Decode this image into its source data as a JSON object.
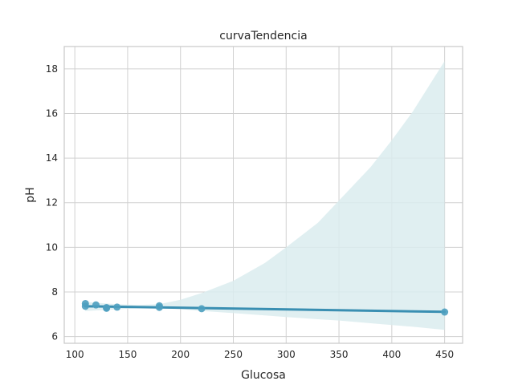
{
  "chart_data": {
    "type": "scatter",
    "title": "curvaTendencia",
    "xlabel": "Glucosa",
    "ylabel": "pH",
    "xlim": [
      90,
      467
    ],
    "ylim": [
      5.7,
      19.0
    ],
    "xticks": [
      100,
      150,
      200,
      250,
      300,
      350,
      400,
      450
    ],
    "yticks": [
      6,
      8,
      10,
      12,
      14,
      16,
      18
    ],
    "grid": true,
    "colors": {
      "points": "#4c9fbf",
      "line": "#3a8fb2",
      "band": "#dbecef",
      "grid": "#d0d0d0",
      "spine": "#c8c8c8"
    },
    "points": [
      {
        "x": 110,
        "y": 7.48
      },
      {
        "x": 110,
        "y": 7.36
      },
      {
        "x": 120,
        "y": 7.42
      },
      {
        "x": 130,
        "y": 7.3
      },
      {
        "x": 130,
        "y": 7.27
      },
      {
        "x": 140,
        "y": 7.32
      },
      {
        "x": 180,
        "y": 7.38
      },
      {
        "x": 180,
        "y": 7.31
      },
      {
        "x": 220,
        "y": 7.25
      },
      {
        "x": 450,
        "y": 7.1
      }
    ],
    "regression_line": {
      "x": [
        110,
        450
      ],
      "y": [
        7.36,
        7.11
      ]
    },
    "confidence_band": {
      "x": [
        110,
        140,
        160,
        180,
        200,
        220,
        250,
        280,
        300,
        330,
        350,
        380,
        400,
        420,
        450
      ],
      "upper": [
        7.55,
        7.45,
        7.42,
        7.45,
        7.65,
        7.95,
        8.5,
        9.3,
        10.0,
        11.1,
        12.1,
        13.6,
        14.8,
        16.1,
        18.35
      ],
      "lower": [
        7.15,
        7.22,
        7.27,
        7.28,
        7.23,
        7.15,
        7.05,
        6.95,
        6.88,
        6.78,
        6.72,
        6.6,
        6.52,
        6.44,
        6.3
      ]
    }
  }
}
